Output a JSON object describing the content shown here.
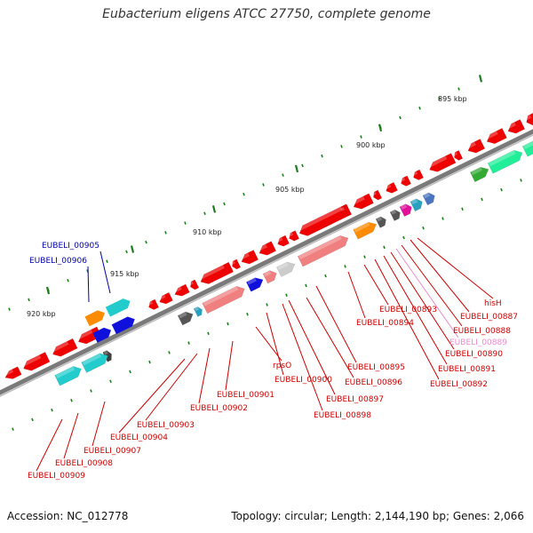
{
  "title": "Eubacterium eligens ATCC 27750, complete genome",
  "footer": {
    "accession": "Accession: NC_012778",
    "topology": "Topology: circular; Length: 2,144,190 bp; Genes: 2,066"
  },
  "colors": {
    "backbone": "#7a7a7a",
    "tick": "#1f7a1f",
    "label_red": "#cc0000",
    "label_blue": "#0000aa",
    "label_pink": "#ee88cc"
  },
  "ticks": [
    {
      "label": "895 kbp"
    },
    {
      "label": "900 kbp"
    },
    {
      "label": "905 kbp"
    },
    {
      "label": "910 kbp"
    },
    {
      "label": "915 kbp"
    },
    {
      "label": "920 kbp"
    }
  ],
  "gene_labels": [
    {
      "name": "hisH",
      "color": "red"
    },
    {
      "name": "EUBELI_00887",
      "color": "red"
    },
    {
      "name": "EUBELI_00888",
      "color": "red"
    },
    {
      "name": "EUBELI_00889",
      "color": "pink"
    },
    {
      "name": "EUBELI_00890",
      "color": "red"
    },
    {
      "name": "EUBELI_00891",
      "color": "red"
    },
    {
      "name": "EUBELI_00892",
      "color": "red"
    },
    {
      "name": "EUBELI_00893",
      "color": "red"
    },
    {
      "name": "EUBELI_00894",
      "color": "red"
    },
    {
      "name": "EUBELI_00895",
      "color": "red"
    },
    {
      "name": "EUBELI_00896",
      "color": "red"
    },
    {
      "name": "EUBELI_00897",
      "color": "red"
    },
    {
      "name": "EUBELI_00898",
      "color": "red"
    },
    {
      "name": "EUBELI_00900",
      "color": "red"
    },
    {
      "name": "rpsO",
      "color": "red"
    },
    {
      "name": "EUBELI_00901",
      "color": "red"
    },
    {
      "name": "EUBELI_00902",
      "color": "red"
    },
    {
      "name": "EUBELI_00903",
      "color": "red"
    },
    {
      "name": "EUBELI_00904",
      "color": "red"
    },
    {
      "name": "EUBELI_00907",
      "color": "red"
    },
    {
      "name": "EUBELI_00908",
      "color": "red"
    },
    {
      "name": "EUBELI_00909",
      "color": "red"
    },
    {
      "name": "EUBELI_00905",
      "color": "blue"
    },
    {
      "name": "EUBELI_00906",
      "color": "blue"
    }
  ]
}
